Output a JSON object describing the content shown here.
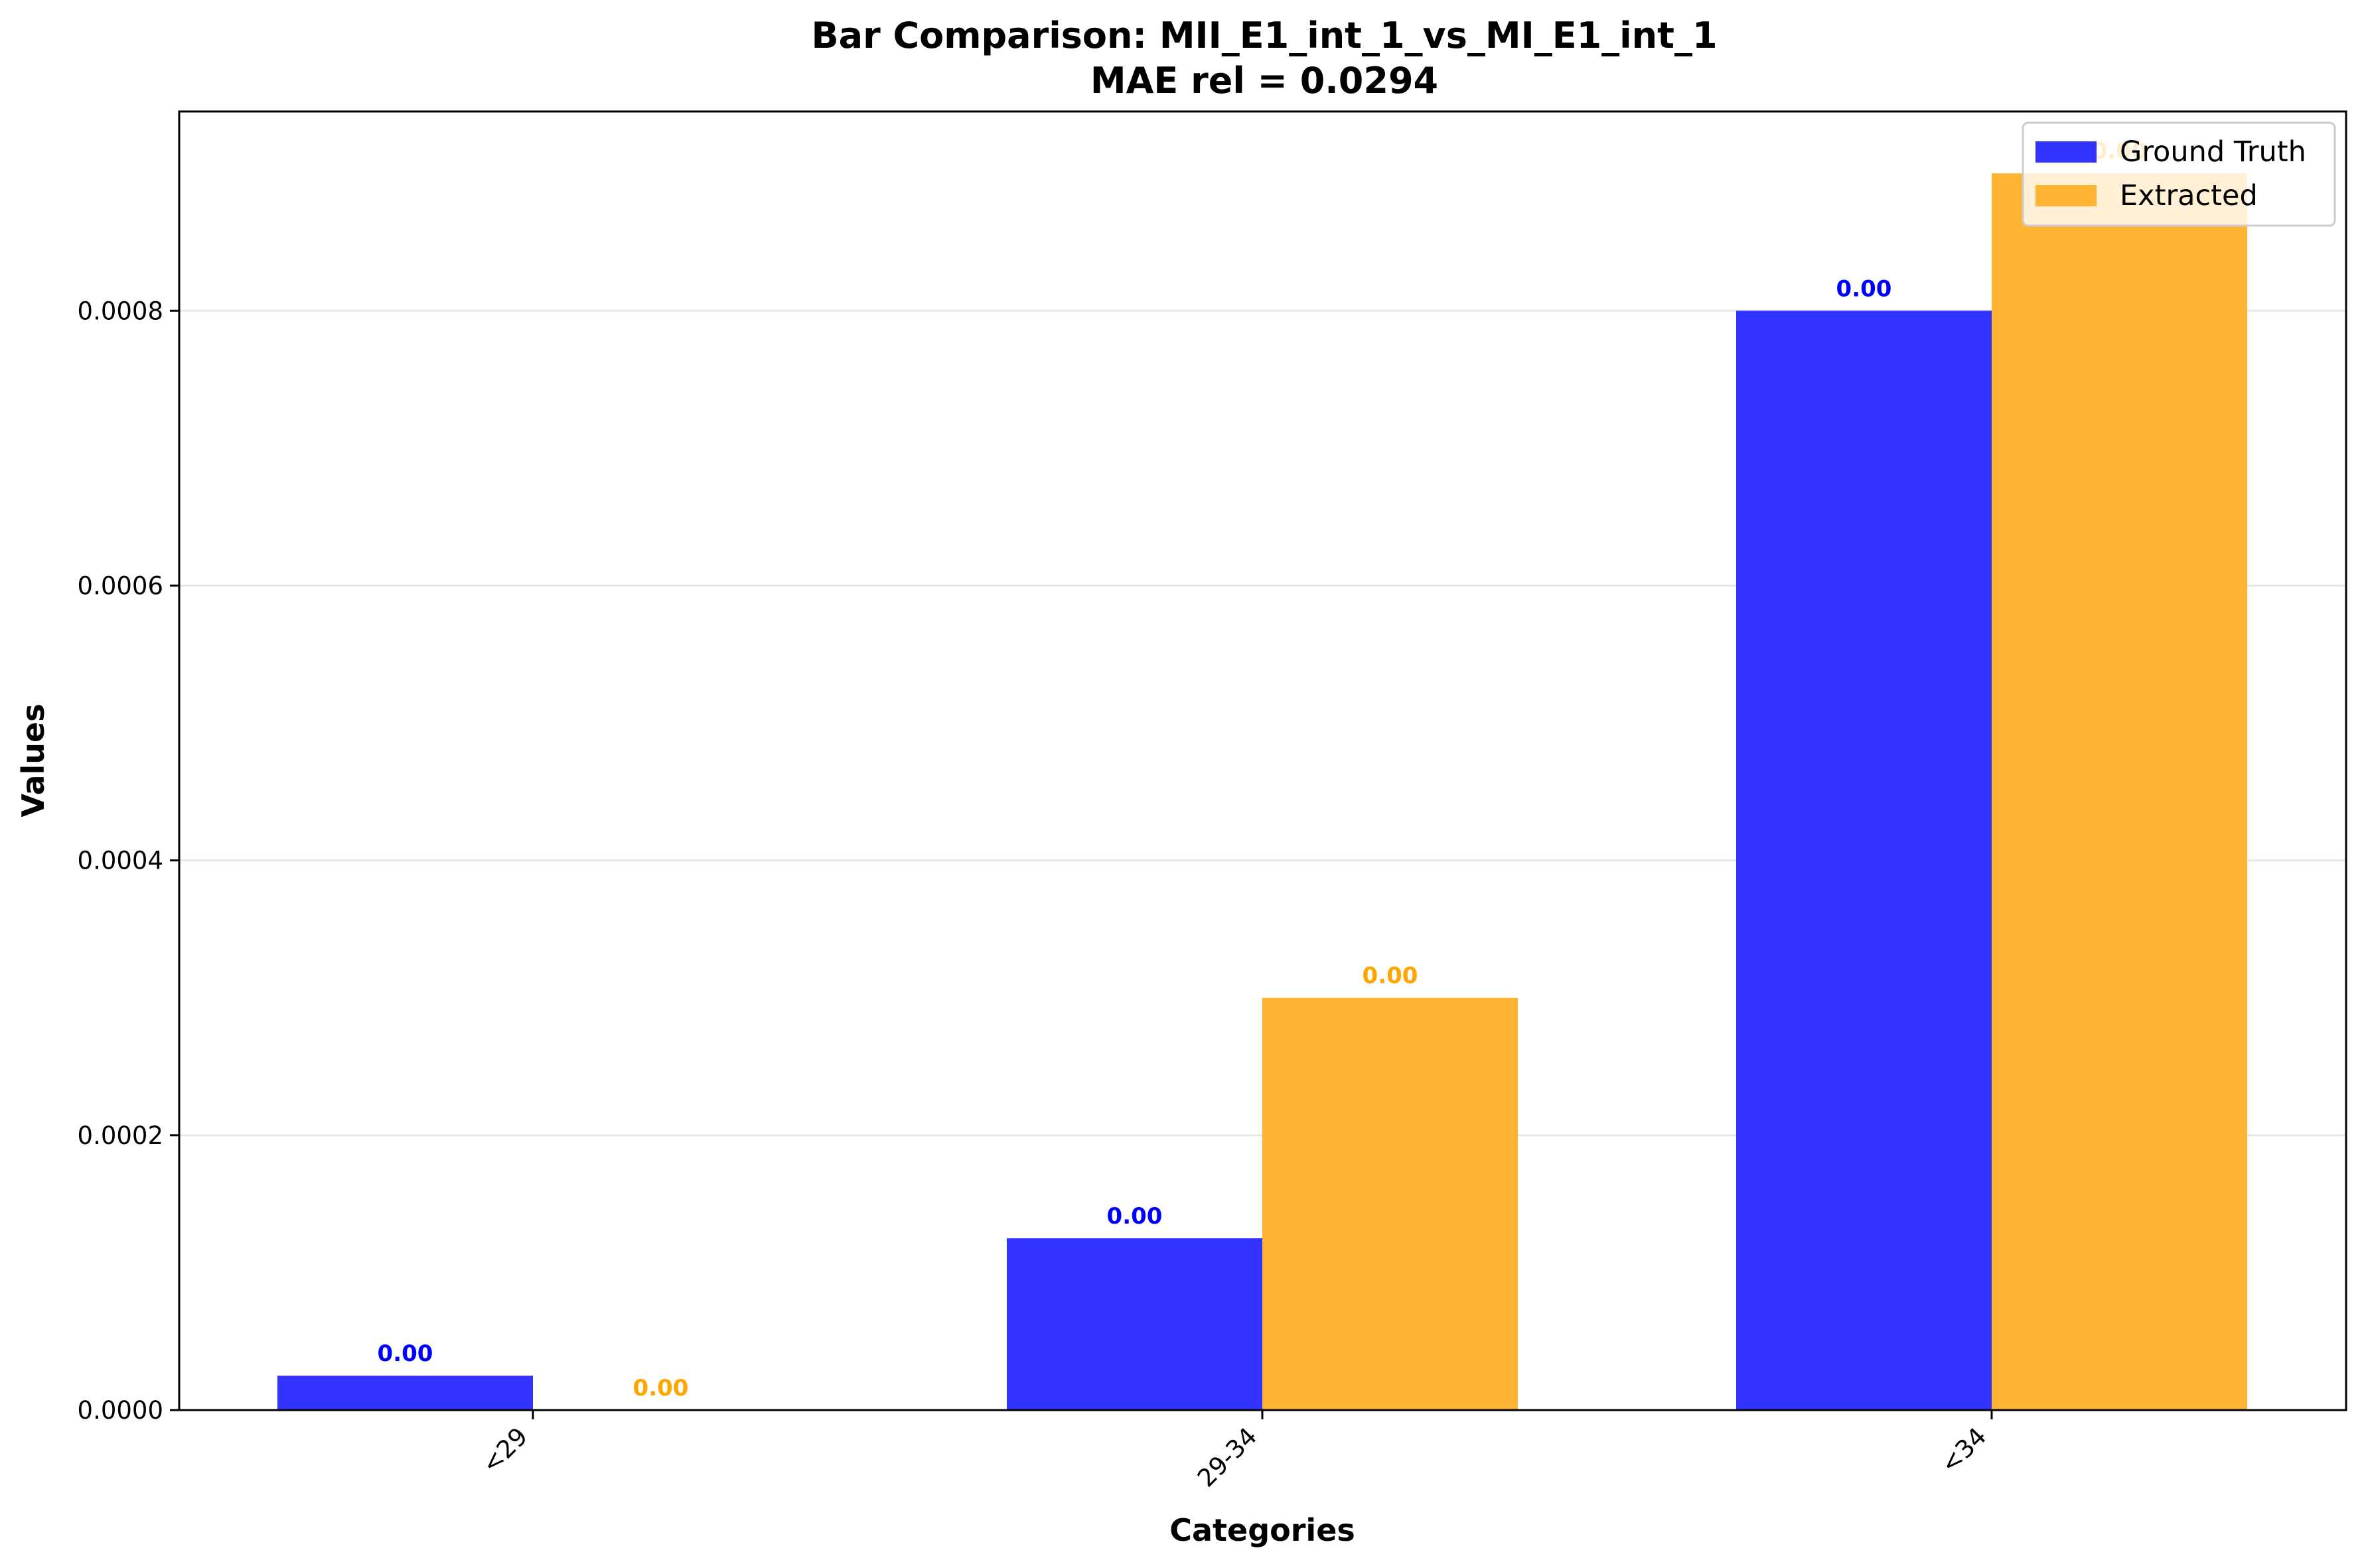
{
  "chart_data": {
    "type": "bar",
    "title": "Bar Comparison: MII_E1_int_1_vs_MI_E1_int_1",
    "subtitle": "MAE rel = 0.0294",
    "xlabel": "Categories",
    "ylabel": "Values",
    "categories": [
      "<29",
      "29-34",
      "<34"
    ],
    "series": [
      {
        "name": "Ground Truth",
        "values": [
          2.5e-05,
          0.000125,
          0.0008
        ],
        "color": "#3333ff",
        "label_color": "#0000ff",
        "labels": [
          "0.00",
          "0.00",
          "0.00"
        ]
      },
      {
        "name": "Extracted",
        "values": [
          0.0,
          0.0003,
          0.0009
        ],
        "color": "#ffb333",
        "label_color": "#ffa500",
        "labels": [
          "0.00",
          "0.00",
          "0.00"
        ]
      }
    ],
    "ylim": [
      0,
      0.000945
    ],
    "yticks": [
      0,
      0.0002,
      0.0004,
      0.0006,
      0.0008
    ],
    "ytick_labels": [
      "0.0000",
      "0.0002",
      "0.0004",
      "0.0006",
      "0.0008"
    ],
    "grid": "horizontal",
    "legend_position": "top-right"
  }
}
